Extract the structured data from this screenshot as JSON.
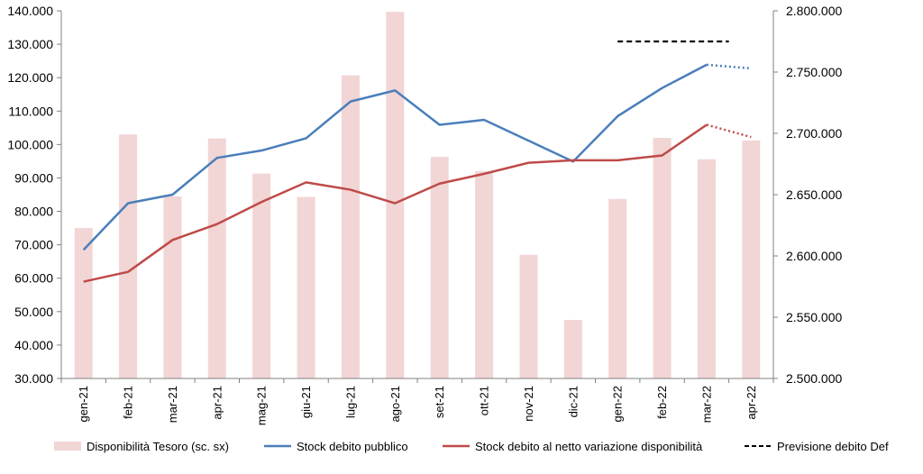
{
  "chart_data": {
    "type": "bar+line",
    "categories": [
      "gen-21",
      "feb-21",
      "mar-21",
      "apr-21",
      "mag-21",
      "giu-21",
      "lug-21",
      "ago-21",
      "set-21",
      "ott-21",
      "nov-21",
      "dic-21",
      "gen-22",
      "feb-22",
      "mar-22",
      "apr-22"
    ],
    "left_axis": {
      "ylim": [
        30000,
        140000
      ],
      "ticks": [
        "30.000",
        "40.000",
        "50.000",
        "60.000",
        "70.000",
        "80.000",
        "90.000",
        "100.000",
        "110.000",
        "120.000",
        "130.000",
        "140.000"
      ]
    },
    "right_axis": {
      "ylim": [
        2500000,
        2800000
      ],
      "ticks": [
        "2.500.000",
        "2.550.000",
        "2.600.000",
        "2.650.000",
        "2.700.000",
        "2.750.000",
        "2.800.000"
      ]
    },
    "bars": {
      "name": "Disponibilità Tesoro (sc. sx)",
      "color": "#f2d5d5",
      "values": [
        75000,
        103000,
        84500,
        101800,
        91300,
        84300,
        120700,
        139700,
        96300,
        92000,
        67000,
        47500,
        83700,
        102000,
        95600,
        101200
      ]
    },
    "series": [
      {
        "name": "Stock debito pubblico",
        "color": "#4a7ebb",
        "axis": "right",
        "values": [
          2605000,
          2643000,
          2650000,
          2680000,
          2686000,
          2696000,
          2726000,
          2735000,
          2707000,
          2711000,
          2694000,
          2677000,
          2714000,
          2737000,
          2756000,
          2753000
        ],
        "projected_from_index": 14
      },
      {
        "name": "Stock debito al netto variazione disponibilità",
        "color": "#be4b48",
        "axis": "right",
        "values": [
          2579000,
          2587000,
          2613000,
          2626000,
          2644000,
          2660000,
          2654000,
          2643000,
          2659000,
          2667000,
          2676000,
          2678000,
          2678000,
          2682000,
          2707000,
          2697000
        ],
        "projected_from_index": 14
      },
      {
        "name": "Previsione debito Def",
        "color": "#000000",
        "axis": "right",
        "dashed": true,
        "x_range": [
          "gen-22",
          "mar-22"
        ],
        "value": 2775000
      }
    ],
    "legend_position": "bottom",
    "grid": false
  }
}
